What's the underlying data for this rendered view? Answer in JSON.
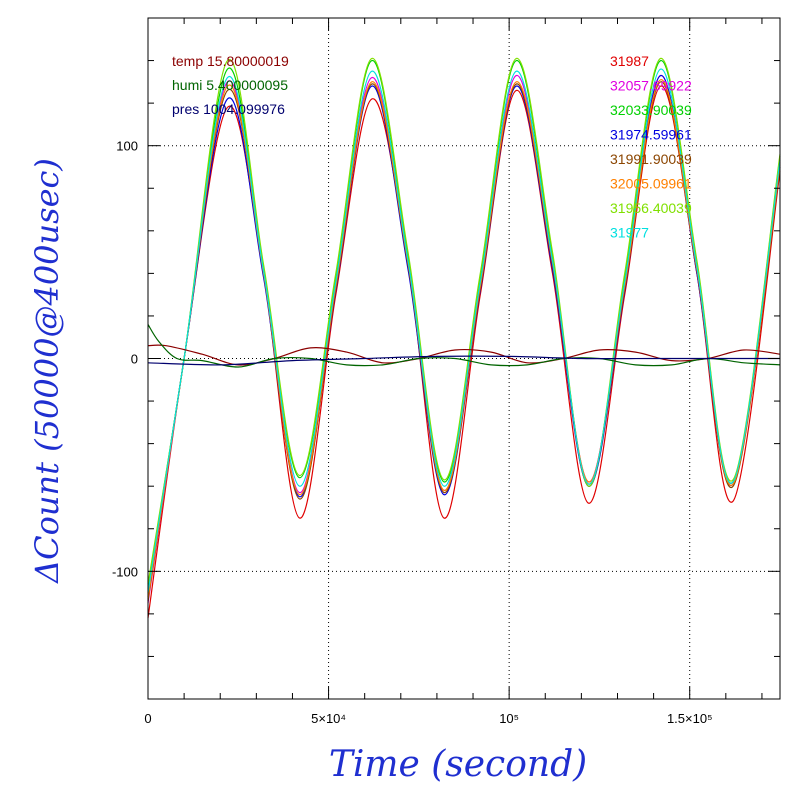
{
  "chart_data": {
    "type": "line",
    "title": "",
    "xlabel": "Time (second)",
    "ylabel": "ΔCount (50000@400usec)",
    "xlim": [
      0,
      175000
    ],
    "ylim": [
      -160,
      160
    ],
    "grid": true,
    "x_ticks": [
      {
        "value": 0,
        "label": "0"
      },
      {
        "value": 50000,
        "label": "5×10⁴"
      },
      {
        "value": 100000,
        "label": "10⁵"
      },
      {
        "value": 150000,
        "label": "1.5×10⁵"
      }
    ],
    "y_ticks": [
      {
        "value": -100,
        "label": "-100"
      },
      {
        "value": 0,
        "label": "0"
      },
      {
        "value": 100,
        "label": "100"
      }
    ],
    "legend_left": [
      {
        "label": "temp 15.80000019",
        "color": "#8b0000"
      },
      {
        "label": "humi 5.400000095",
        "color": "#006400"
      },
      {
        "label": "pres 1004.099976",
        "color": "#00006e"
      }
    ],
    "legend_right": [
      {
        "label": "31987",
        "color": "#e00000"
      },
      {
        "label": "32057.69922",
        "color": "#e000e0"
      },
      {
        "label": "32033.90039",
        "color": "#00d000"
      },
      {
        "label": "31974.59961",
        "color": "#0000e0"
      },
      {
        "label": "31991.90039",
        "color": "#8b4500"
      },
      {
        "label": "32005.09961",
        "color": "#ff8000"
      },
      {
        "label": "31956.40039",
        "color": "#80e000"
      },
      {
        "label": "31977",
        "color": "#00e0e0"
      }
    ],
    "series": [
      {
        "name": "31987",
        "color": "#e00000",
        "x": [
          0,
          10000,
          22000,
          32000,
          42000,
          52000,
          62000,
          72000,
          82000,
          92000,
          102000,
          112000,
          122000,
          132000,
          142000,
          152000,
          162000,
          175000
        ],
        "y": [
          -122,
          0,
          118,
          40,
          -75,
          30,
          122,
          45,
          -75,
          30,
          126,
          40,
          -68,
          30,
          128,
          40,
          -67,
          88
        ]
      },
      {
        "name": "32057.69922",
        "color": "#e000e0",
        "x": [
          0,
          10000,
          22000,
          32000,
          42000,
          52000,
          62000,
          72000,
          82000,
          92000,
          102000,
          112000,
          122000,
          132000,
          142000,
          152000,
          162000,
          175000
        ],
        "y": [
          -115,
          0,
          130,
          40,
          -63,
          35,
          132,
          45,
          -62,
          35,
          133,
          45,
          -58,
          35,
          133,
          40,
          -58,
          92
        ]
      },
      {
        "name": "32033.90039",
        "color": "#00d000",
        "x": [
          0,
          10000,
          22000,
          32000,
          42000,
          52000,
          62000,
          72000,
          82000,
          92000,
          102000,
          112000,
          122000,
          132000,
          142000,
          152000,
          162000,
          175000
        ],
        "y": [
          -108,
          0,
          136,
          42,
          -56,
          38,
          140,
          48,
          -58,
          38,
          140,
          48,
          -60,
          38,
          140,
          45,
          -58,
          95
        ]
      },
      {
        "name": "31974.59961",
        "color": "#0000e0",
        "x": [
          0,
          10000,
          22000,
          32000,
          42000,
          52000,
          62000,
          72000,
          82000,
          92000,
          102000,
          112000,
          122000,
          132000,
          142000,
          152000,
          162000,
          175000
        ],
        "y": [
          -112,
          0,
          122,
          38,
          -65,
          32,
          128,
          42,
          -64,
          32,
          128,
          42,
          -60,
          32,
          133,
          40,
          -59,
          90
        ]
      },
      {
        "name": "31991.90039",
        "color": "#8b4500",
        "x": [
          0,
          10000,
          22000,
          32000,
          42000,
          52000,
          62000,
          72000,
          82000,
          92000,
          102000,
          112000,
          122000,
          132000,
          142000,
          152000,
          162000,
          175000
        ],
        "y": [
          -114,
          0,
          126,
          40,
          -66,
          33,
          129,
          44,
          -63,
          33,
          129,
          44,
          -59,
          33,
          130,
          41,
          -60,
          90
        ]
      },
      {
        "name": "32005.09961",
        "color": "#ff8000",
        "x": [
          0,
          10000,
          22000,
          32000,
          42000,
          52000,
          62000,
          72000,
          82000,
          92000,
          102000,
          112000,
          122000,
          132000,
          142000,
          152000,
          162000,
          175000
        ],
        "y": [
          -113,
          0,
          128,
          40,
          -64,
          34,
          130,
          45,
          -62,
          34,
          130,
          45,
          -58,
          34,
          131,
          42,
          -59,
          91
        ]
      },
      {
        "name": "31956.40039",
        "color": "#80e000",
        "x": [
          0,
          10000,
          22000,
          32000,
          42000,
          52000,
          62000,
          72000,
          82000,
          92000,
          102000,
          112000,
          122000,
          132000,
          142000,
          152000,
          162000,
          175000
        ],
        "y": [
          -106,
          0,
          140,
          44,
          -55,
          40,
          141,
          50,
          -57,
          40,
          141,
          50,
          -60,
          40,
          141,
          46,
          -57,
          96
        ]
      },
      {
        "name": "31977",
        "color": "#00e0e0",
        "x": [
          0,
          10000,
          22000,
          32000,
          42000,
          52000,
          62000,
          72000,
          82000,
          92000,
          102000,
          112000,
          122000,
          132000,
          142000,
          152000,
          162000,
          175000
        ],
        "y": [
          -110,
          0,
          132,
          41,
          -60,
          36,
          135,
          46,
          -60,
          36,
          135,
          46,
          -59,
          36,
          136,
          43,
          -58,
          93
        ]
      },
      {
        "name": "temp 15.80000019",
        "color": "#8b0000",
        "x": [
          0,
          5000,
          15000,
          25000,
          35000,
          45000,
          55000,
          65000,
          75000,
          85000,
          95000,
          105000,
          115000,
          125000,
          135000,
          145000,
          155000,
          165000,
          175000
        ],
        "y": [
          6,
          6,
          2,
          -3,
          0,
          5,
          3,
          -2,
          0,
          4,
          3,
          -2,
          0,
          4,
          3,
          -1,
          0,
          4,
          2
        ]
      },
      {
        "name": "humi 5.400000095",
        "color": "#006400",
        "x": [
          0,
          3000,
          8000,
          15000,
          25000,
          35000,
          45000,
          55000,
          65000,
          75000,
          85000,
          95000,
          105000,
          115000,
          125000,
          135000,
          145000,
          155000,
          165000,
          175000
        ],
        "y": [
          16,
          8,
          0,
          -1,
          -4,
          0,
          0,
          -3,
          -3,
          0,
          0,
          -3,
          -3,
          0,
          0,
          -3,
          -3,
          0,
          -2,
          -3
        ]
      },
      {
        "name": "pres 1004.099976",
        "color": "#00006e",
        "x": [
          0,
          20000,
          40000,
          60000,
          80000,
          100000,
          120000,
          140000,
          160000,
          175000
        ],
        "y": [
          -2,
          -3,
          -1,
          0,
          1,
          1,
          0,
          0,
          0,
          0
        ]
      }
    ]
  }
}
